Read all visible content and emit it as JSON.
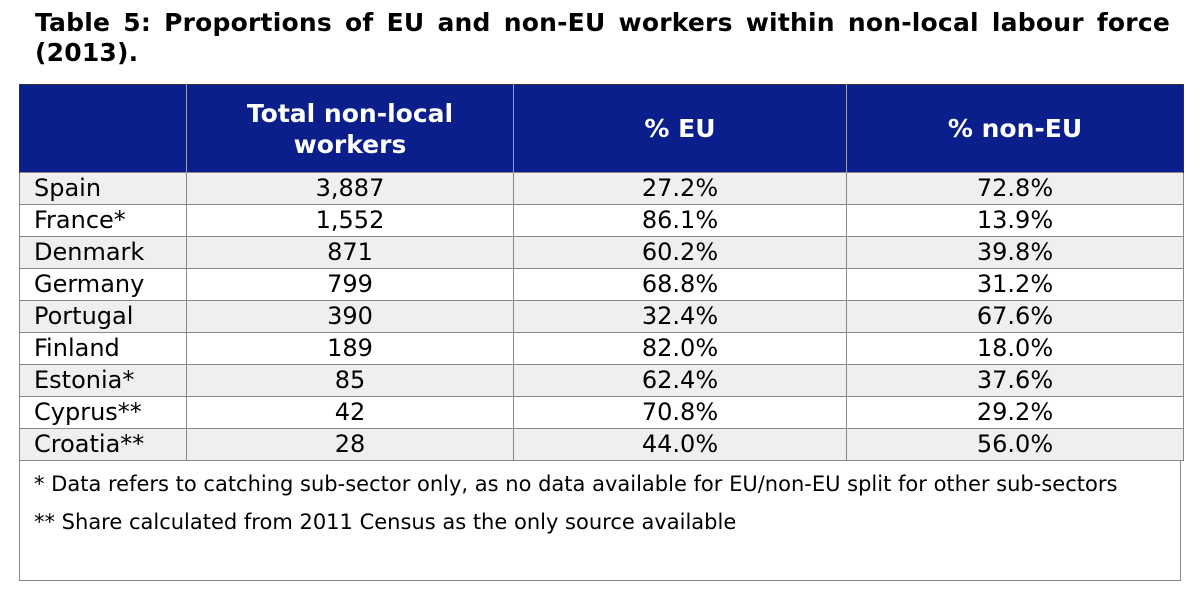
{
  "title": "Table 5: Proportions of EU and non-EU workers within non-local labour force (2013).",
  "table": {
    "headers": [
      "",
      "Total non-local workers",
      "% EU",
      "% non-EU"
    ],
    "rows": [
      [
        "Spain",
        "3,887",
        "27.2%",
        "72.8%"
      ],
      [
        "France*",
        "1,552",
        "86.1%",
        "13.9%"
      ],
      [
        "Denmark",
        "871",
        "60.2%",
        "39.8%"
      ],
      [
        "Germany",
        "799",
        "68.8%",
        "31.2%"
      ],
      [
        "Portugal",
        "390",
        "32.4%",
        "67.6%"
      ],
      [
        "Finland",
        "189",
        "82.0%",
        "18.0%"
      ],
      [
        "Estonia*",
        "85",
        "62.4%",
        "37.6%"
      ],
      [
        "Cyprus**",
        "42",
        "70.8%",
        "29.2%"
      ],
      [
        "Croatia**",
        "28",
        "44.0%",
        "56.0%"
      ]
    ]
  },
  "notes": [
    "* Data refers to catching sub-sector only, as no data available for EU/non-EU split for other sub-sectors",
    "** Share calculated from 2011 Census as the only source available"
  ],
  "colors": {
    "header_bg": "#0a1e8c",
    "header_text": "#ffffff",
    "stripe": "#efefef"
  }
}
